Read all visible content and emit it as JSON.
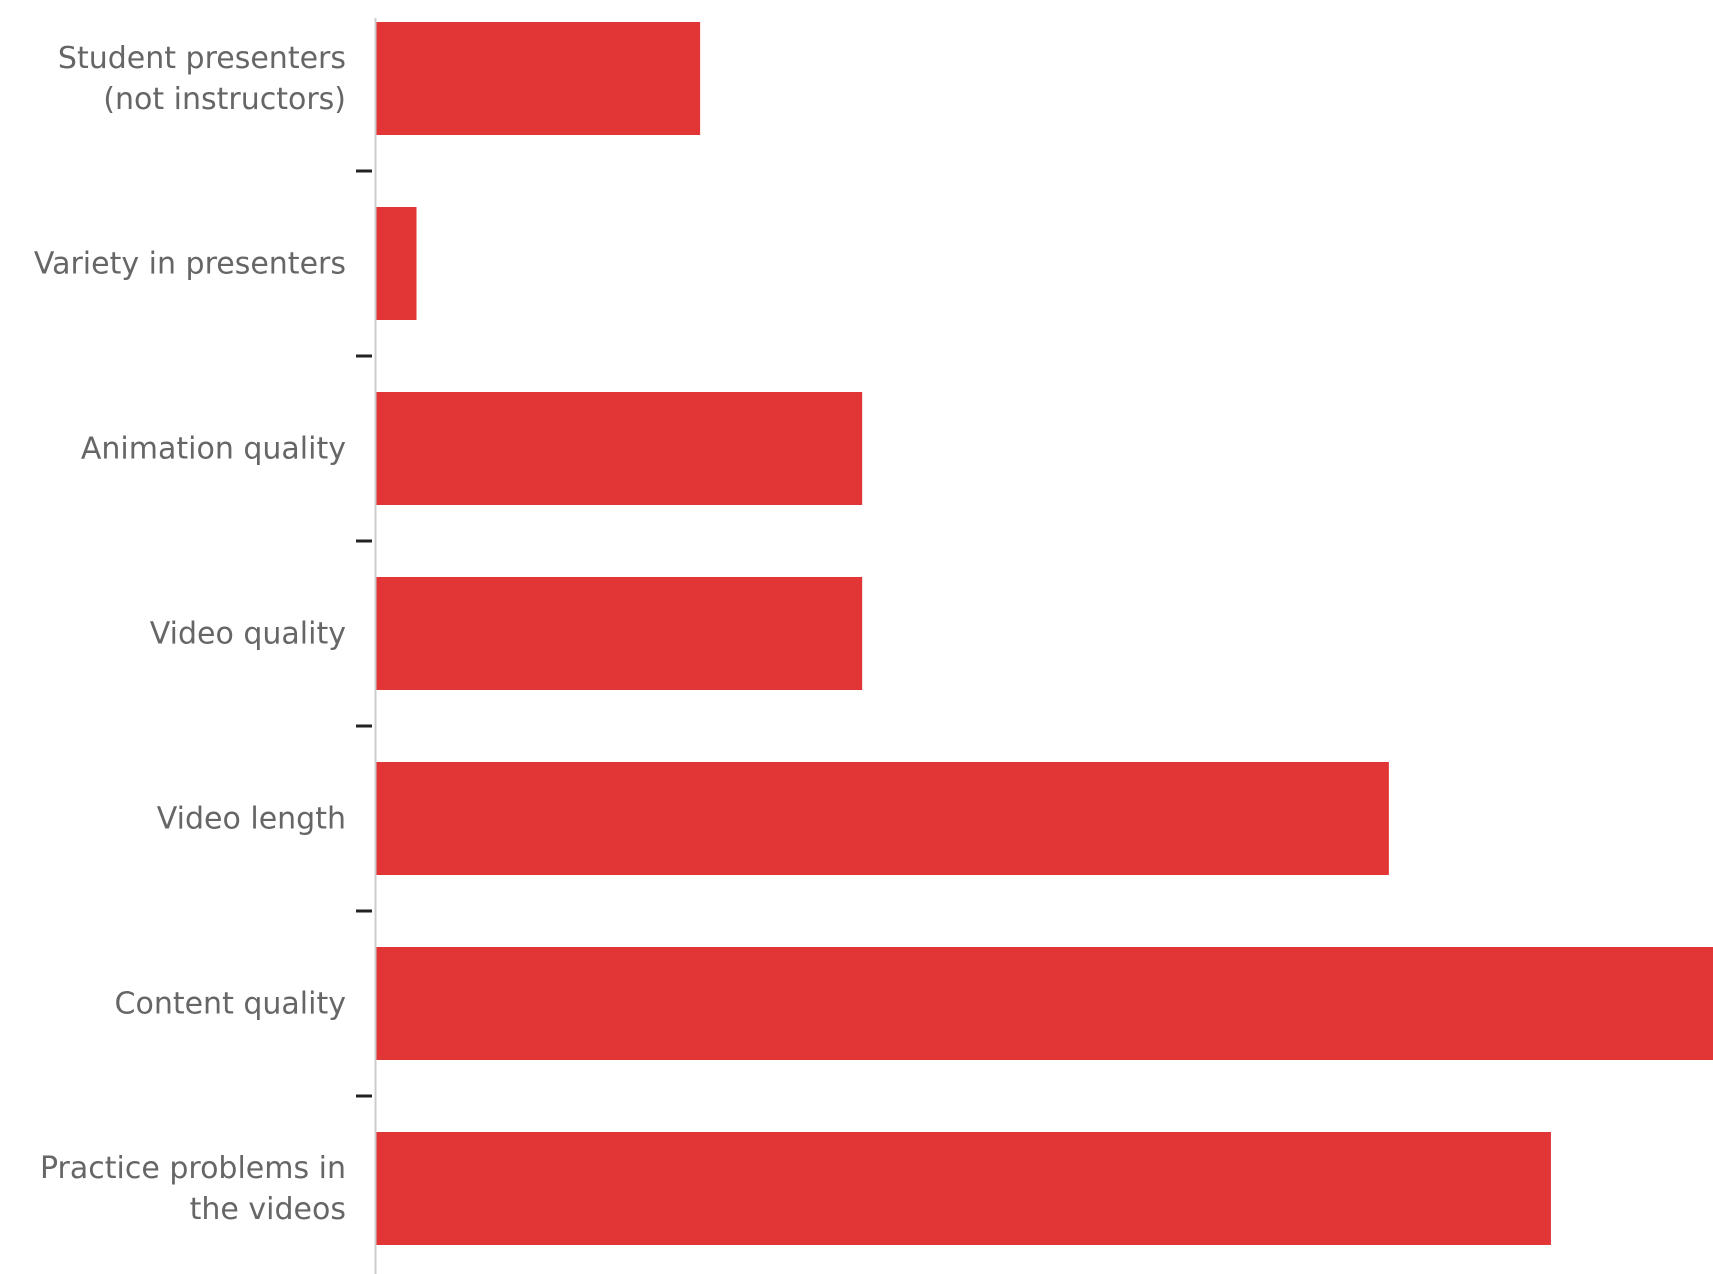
{
  "chart_data": {
    "type": "bar",
    "orientation": "horizontal",
    "categories": [
      "Student presenters\n(not instructors)",
      "Variety in presenters",
      "Animation quality",
      "Video quality",
      "Video length",
      "Content quality",
      "Practice problems in\nthe videos"
    ],
    "values": [
      8,
      1,
      12,
      12,
      25,
      33,
      29
    ],
    "xlim": [
      0,
      33
    ],
    "title": "",
    "xlabel": "",
    "ylabel": "",
    "grid": false,
    "legend": "none",
    "bar_color": "#e23636",
    "axis_color": "#cccccc",
    "tick_color": "#222222",
    "label_color": "#666666"
  }
}
